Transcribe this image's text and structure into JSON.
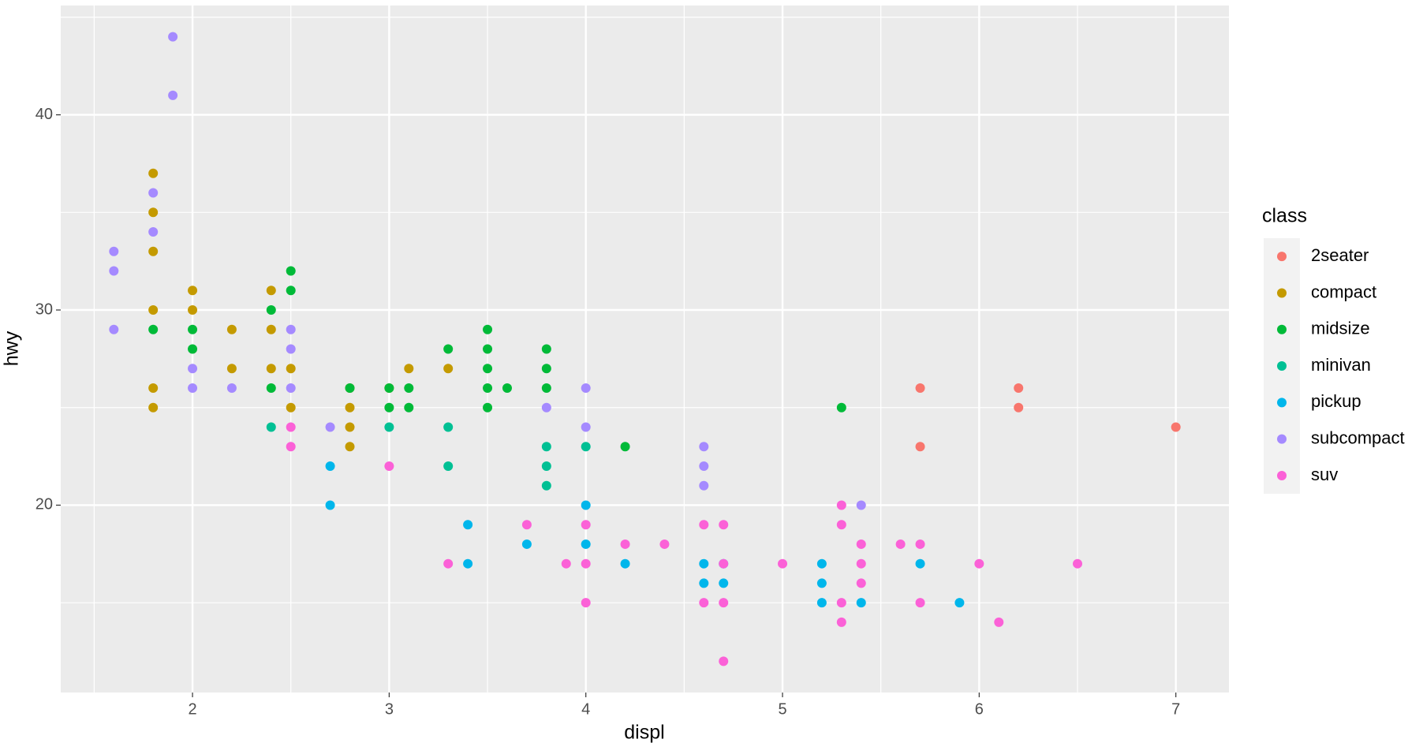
{
  "chart_data": {
    "type": "scatter",
    "x_label": "displ",
    "y_label": "hwy",
    "legend_title": "class",
    "xlim": [
      1.33,
      7.27
    ],
    "ylim": [
      10.4,
      45.6
    ],
    "xticks": [
      2,
      3,
      4,
      5,
      6,
      7
    ],
    "yticks": [
      20,
      30,
      40
    ],
    "grid": true,
    "legend": "right",
    "series": [
      {
        "name": "2seater",
        "color": "#F8766D",
        "x": [
          5.7,
          5.7,
          6.2,
          6.2,
          7.0
        ],
        "values": [
          26,
          23,
          26,
          25,
          24
        ]
      },
      {
        "name": "compact",
        "color": "#C49A00",
        "x": [
          1.8,
          1.8,
          1.8,
          1.8,
          1.8,
          1.8,
          2.0,
          2.0,
          2.2,
          2.2,
          2.4,
          2.4,
          2.4,
          2.5,
          2.5,
          2.8,
          2.8,
          2.8,
          2.8,
          3.0,
          3.1,
          3.3
        ],
        "values": [
          37,
          35,
          33,
          30,
          26,
          25,
          31,
          30,
          29,
          27,
          31,
          29,
          27,
          27,
          25,
          26,
          25,
          24,
          23,
          26,
          27,
          27
        ]
      },
      {
        "name": "midsize",
        "color": "#00BA38",
        "x": [
          1.8,
          2.0,
          2.0,
          2.4,
          2.4,
          2.5,
          2.5,
          2.8,
          3.0,
          3.0,
          3.1,
          3.1,
          3.3,
          3.5,
          3.5,
          3.5,
          3.5,
          3.5,
          3.6,
          3.8,
          3.8,
          3.8,
          4.2,
          5.3
        ],
        "values": [
          29,
          29,
          28,
          30,
          26,
          32,
          31,
          26,
          26,
          25,
          26,
          25,
          28,
          29,
          28,
          27,
          26,
          25,
          26,
          28,
          27,
          26,
          23,
          25
        ]
      },
      {
        "name": "minivan",
        "color": "#00C094",
        "x": [
          2.4,
          3.0,
          3.3,
          3.3,
          3.8,
          3.8,
          3.8,
          4.0
        ],
        "values": [
          24,
          24,
          24,
          22,
          23,
          22,
          21,
          23
        ]
      },
      {
        "name": "pickup",
        "color": "#00B6EB",
        "x": [
          2.7,
          2.7,
          3.4,
          3.4,
          3.7,
          4.0,
          4.0,
          4.2,
          4.6,
          4.6,
          4.7,
          4.7,
          5.2,
          5.2,
          5.2,
          5.4,
          5.7,
          5.9
        ],
        "values": [
          22,
          20,
          19,
          17,
          18,
          20,
          18,
          17,
          17,
          16,
          17,
          16,
          17,
          16,
          15,
          15,
          17,
          15
        ]
      },
      {
        "name": "subcompact",
        "color": "#A58AFF",
        "x": [
          1.6,
          1.6,
          1.6,
          1.8,
          1.8,
          1.9,
          1.9,
          2.0,
          2.0,
          2.2,
          2.5,
          2.5,
          2.5,
          2.7,
          3.8,
          4.0,
          4.0,
          4.6,
          4.6,
          4.6,
          5.4
        ],
        "values": [
          33,
          32,
          29,
          36,
          34,
          44,
          41,
          27,
          26,
          26,
          29,
          28,
          26,
          24,
          25,
          26,
          24,
          23,
          22,
          21,
          20
        ]
      },
      {
        "name": "suv",
        "color": "#FB61D7",
        "x": [
          2.5,
          2.5,
          3.0,
          3.3,
          3.7,
          3.9,
          4.0,
          4.0,
          4.0,
          4.2,
          4.4,
          4.6,
          4.6,
          4.7,
          4.7,
          4.7,
          4.7,
          5.0,
          5.3,
          5.3,
          5.3,
          5.3,
          5.4,
          5.4,
          5.4,
          5.6,
          5.7,
          5.7,
          6.0,
          6.1,
          6.5
        ],
        "values": [
          24,
          23,
          22,
          17,
          19,
          17,
          19,
          17,
          15,
          18,
          18,
          19,
          15,
          19,
          17,
          15,
          12,
          17,
          20,
          19,
          15,
          14,
          18,
          17,
          16,
          18,
          18,
          15,
          17,
          14,
          17
        ]
      }
    ]
  }
}
